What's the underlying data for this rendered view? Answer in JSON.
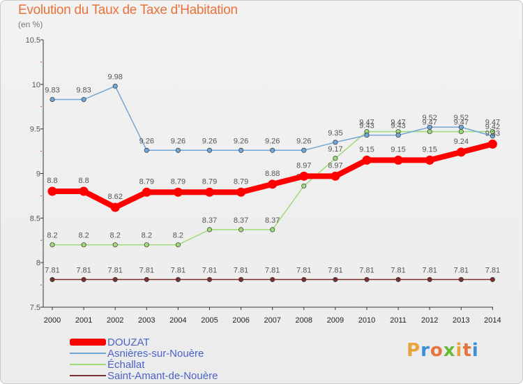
{
  "title": "Evolution du Taux de Taxe d'Habitation",
  "subtitle": "(en %)",
  "logo_text": "Proxiti",
  "chart_data": {
    "type": "line",
    "title": "Evolution du Taux de Taxe d'Habitation",
    "ylabel": "(en %)",
    "xlabel": "",
    "ylim": [
      7.5,
      10.5
    ],
    "yticks": [
      7.5,
      8,
      8.5,
      9,
      9.5,
      10,
      10.5
    ],
    "x": [
      "2000",
      "2001",
      "2002",
      "2003",
      "2004",
      "2005",
      "2006",
      "2007",
      "2008",
      "2009",
      "2010",
      "2011",
      "2012",
      "2013",
      "2014"
    ],
    "grid": false,
    "legend_position": "bottom-left",
    "series": [
      {
        "name": "Saint-Amant-de-Nouère",
        "color": "#7a2f2f",
        "values": [
          7.81,
          7.81,
          7.81,
          7.81,
          7.81,
          7.81,
          7.81,
          7.81,
          7.81,
          7.81,
          7.81,
          7.81,
          7.81,
          7.81,
          7.81
        ]
      },
      {
        "name": "Échallat",
        "color": "#9ed97a",
        "values": [
          8.2,
          8.2,
          8.2,
          8.2,
          8.2,
          8.37,
          8.37,
          8.37,
          8.86,
          9.17,
          9.47,
          9.47,
          9.47,
          9.47,
          9.47
        ]
      },
      {
        "name": "Asnières-sur-Nouère",
        "color": "#6fa7d8",
        "values": [
          9.83,
          9.83,
          9.98,
          9.26,
          9.26,
          9.26,
          9.26,
          9.26,
          9.26,
          9.35,
          9.43,
          9.43,
          9.52,
          9.52,
          9.42
        ]
      },
      {
        "name": "DOUZAT",
        "color": "#ff0000",
        "values": [
          8.8,
          8.8,
          8.62,
          8.79,
          8.79,
          8.79,
          8.79,
          8.88,
          8.97,
          8.97,
          9.15,
          9.15,
          9.15,
          9.24,
          9.33
        ]
      }
    ]
  },
  "legend": [
    {
      "name": "DOUZAT",
      "color": "#ff0000"
    },
    {
      "name": "Asnières-sur-Nouère",
      "color": "#6fa7d8"
    },
    {
      "name": "Échallat",
      "color": "#9ed97a"
    },
    {
      "name": "Saint-Amant-de-Nouère",
      "color": "#7a2f2f"
    }
  ]
}
